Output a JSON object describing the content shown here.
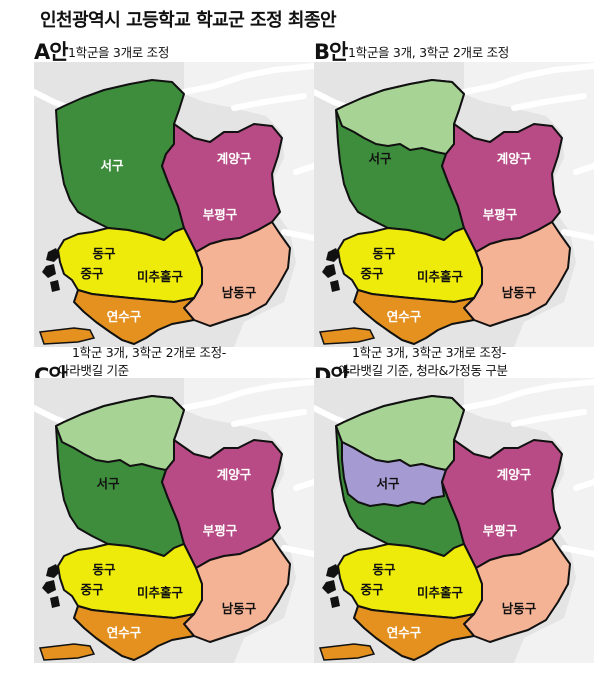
{
  "title": "인천광역시 고등학교 학교군 조정 최종안",
  "colors": {
    "background_sea": "#e4e4e4",
    "seo_dark": "#3e8d3c",
    "seo_light": "#a7d495",
    "seo_purple": "#a59bd2",
    "gyeyang_bupyeong": "#b84b85",
    "dong_jung_michuhol": "#eeea0a",
    "namdong": "#f5b396",
    "yeonsu": "#e4911f",
    "border": "#111111"
  },
  "plans": [
    {
      "letter": "A안",
      "desc_lines": [
        "1학군을 3개로 조정"
      ],
      "labels": {
        "seo": "서구",
        "gyeyang": "계양구",
        "bupyeong": "부평구",
        "dong": "동구",
        "jung": "중구",
        "michuhol": "미추홀구",
        "namdong": "남동구",
        "yeonsu": "연수구"
      }
    },
    {
      "letter": "B안",
      "desc_lines": [
        "1학군을 3개, 3학군 2개로 조정"
      ],
      "labels": {
        "seo": "서구",
        "gyeyang": "계양구",
        "bupyeong": "부평구",
        "dong": "동구",
        "jung": "중구",
        "michuhol": "미추홀구",
        "namdong": "남동구",
        "yeonsu": "연수구"
      }
    },
    {
      "letter": "C안",
      "desc_lines": [
        "1학군 3개, 3학군 2개로 조정-",
        "아라뱃길 기준"
      ],
      "labels": {
        "seo": "서구",
        "gyeyang": "계양구",
        "bupyeong": "부평구",
        "dong": "동구",
        "jung": "중구",
        "michuhol": "미추홀구",
        "namdong": "남동구",
        "yeonsu": "연수구"
      }
    },
    {
      "letter": "D안",
      "desc_lines": [
        "1학군 3개, 3학군 3개로 조정-",
        "아라뱃길 기준, 청라&가정동 구분"
      ],
      "labels": {
        "seo": "서구",
        "gyeyang": "계양구",
        "bupyeong": "부평구",
        "dong": "동구",
        "jung": "중구",
        "michuhol": "미추홀구",
        "namdong": "남동구",
        "yeonsu": "연수구"
      }
    }
  ]
}
